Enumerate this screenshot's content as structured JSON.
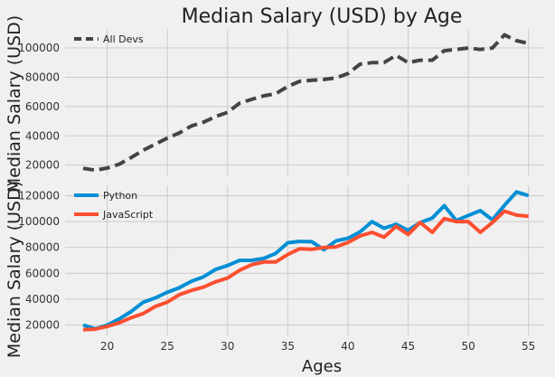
{
  "chart_data": [
    {
      "type": "line",
      "title": "Median Salary (USD) by Age",
      "ylabel": "Median Salary (USD)",
      "xlabel": "",
      "xlim": [
        16.5,
        56.3
      ],
      "ylim": [
        13000,
        113000
      ],
      "xticks": [
        20,
        25,
        30,
        35,
        40,
        45,
        50,
        55
      ],
      "xticks_labels_visible": false,
      "yticks": [
        20000,
        40000,
        60000,
        80000,
        100000
      ],
      "ytick_labels": [
        "20000",
        "40000",
        "60000",
        "80000",
        "100000"
      ],
      "grid": true,
      "legend_position": "upper-left",
      "x": [
        18,
        19,
        20,
        21,
        22,
        23,
        24,
        25,
        26,
        27,
        28,
        29,
        30,
        31,
        32,
        33,
        34,
        35,
        36,
        37,
        38,
        39,
        40,
        41,
        42,
        43,
        44,
        45,
        46,
        47,
        48,
        49,
        50,
        51,
        52,
        53,
        54,
        55
      ],
      "series": [
        {
          "name": "All Devs",
          "color": "#444444",
          "style": "dashed",
          "values": [
            17784,
            16500,
            18012,
            20628,
            25206,
            30252,
            34368,
            38496,
            42000,
            46752,
            49320,
            53200,
            56000,
            62316,
            64928,
            67317,
            68748,
            73752,
            77232,
            78000,
            78508,
            79536,
            82488,
            88935,
            90000,
            90056,
            95000,
            90000,
            91633,
            91660,
            98150,
            98964,
            100000,
            98988,
            100000,
            108923,
            105000,
            103117
          ]
        }
      ]
    },
    {
      "type": "line",
      "title": "",
      "ylabel": "Median Salary (USD)",
      "xlabel": "Ages",
      "xlim": [
        16.5,
        56.3
      ],
      "ylim": [
        12000,
        128000
      ],
      "xticks": [
        20,
        25,
        30,
        35,
        40,
        45,
        50,
        55
      ],
      "xtick_labels": [
        "20",
        "25",
        "30",
        "35",
        "40",
        "45",
        "50",
        "55"
      ],
      "yticks": [
        20000,
        40000,
        60000,
        80000,
        100000,
        120000
      ],
      "ytick_labels": [
        "20000",
        "40000",
        "60000",
        "80000",
        "100000",
        "120000"
      ],
      "grid": true,
      "legend_position": "upper-left",
      "x": [
        18,
        19,
        20,
        21,
        22,
        23,
        24,
        25,
        26,
        27,
        28,
        29,
        30,
        31,
        32,
        33,
        34,
        35,
        36,
        37,
        38,
        39,
        40,
        41,
        42,
        43,
        44,
        45,
        46,
        47,
        48,
        49,
        50,
        51,
        52,
        53,
        54,
        55
      ],
      "series": [
        {
          "name": "Python",
          "color": "#008fd5",
          "style": "solid",
          "values": [
            20046,
            17100,
            20000,
            24744,
            30500,
            37732,
            41000,
            45372,
            48876,
            53850,
            57287,
            63016,
            65998,
            70003,
            70000,
            71496,
            75370,
            83640,
            84666,
            84392,
            78254,
            85000,
            87038,
            91991,
            100000,
            94796,
            97962,
            93302,
            99240,
            102736,
            112285,
            100771,
            104708,
            108423,
            101407,
            112542,
            122870,
            120000
          ]
        },
        {
          "name": "JavaScript",
          "color": "#fc4f30",
          "style": "solid",
          "values": [
            16446,
            16791,
            18942,
            21780,
            25704,
            29000,
            34372,
            37810,
            43515,
            46823,
            49293,
            53437,
            56373,
            62375,
            66674,
            68745,
            68746,
            74583,
            79000,
            78508,
            79996,
            80403,
            83820,
            88833,
            91660,
            87892,
            96243,
            90000,
            99313,
            91660,
            102264,
            100000,
            100000,
            91660,
            99240,
            108000,
            105000,
            104000
          ]
        }
      ]
    }
  ]
}
